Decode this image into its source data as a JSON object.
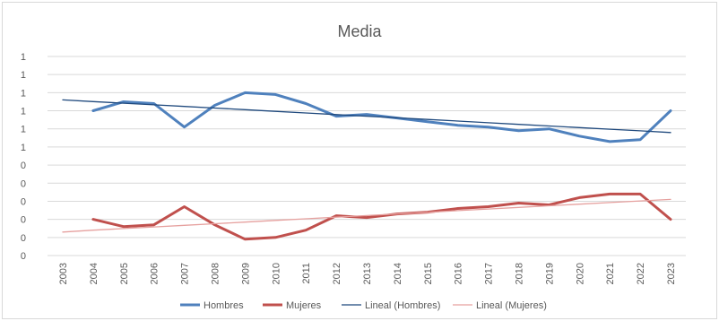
{
  "chart_data": {
    "type": "line",
    "title": "Media",
    "xlabel": "",
    "ylabel": "",
    "x": [
      "2003",
      "2004",
      "2005",
      "2006",
      "2007",
      "2008",
      "2009",
      "2010",
      "2011",
      "2012",
      "2013",
      "2014",
      "2015",
      "2016",
      "2017",
      "2018",
      "2019",
      "2020",
      "2021",
      "2022",
      "2023"
    ],
    "y_tick_labels": [
      "0",
      "0",
      "0",
      "0",
      "0",
      "0",
      "1",
      "1",
      "1",
      "1",
      "1",
      "1"
    ],
    "ylim": [
      0,
      1.1
    ],
    "grid": true,
    "legend_position": "bottom",
    "series": [
      {
        "name": "Hombres",
        "color": "#4f81bd",
        "width": "thick",
        "values": [
          null,
          0.8,
          0.85,
          0.84,
          0.71,
          0.83,
          0.9,
          0.89,
          0.84,
          0.77,
          0.78,
          0.76,
          0.74,
          0.72,
          0.71,
          0.69,
          0.7,
          0.66,
          0.63,
          0.64,
          0.8
        ]
      },
      {
        "name": "Mujeres",
        "color": "#c0504d",
        "width": "thick",
        "values": [
          null,
          0.2,
          0.16,
          0.17,
          0.27,
          0.17,
          0.09,
          0.1,
          0.14,
          0.22,
          0.21,
          0.23,
          0.24,
          0.26,
          0.27,
          0.29,
          0.28,
          0.32,
          0.34,
          0.34,
          0.2
        ]
      },
      {
        "name": "Lineal (Hombres)",
        "color": "#1f497d",
        "width": "thin",
        "values": [
          0.86,
          0.851,
          0.842,
          0.833,
          0.824,
          0.815,
          0.806,
          0.797,
          0.788,
          0.779,
          0.77,
          0.761,
          0.752,
          0.743,
          0.734,
          0.725,
          0.716,
          0.707,
          0.698,
          0.689,
          0.68
        ]
      },
      {
        "name": "Lineal (Mujeres)",
        "color": "#e6a19f",
        "width": "thin",
        "values": [
          0.13,
          0.14,
          0.149,
          0.158,
          0.167,
          0.176,
          0.185,
          0.194,
          0.203,
          0.212,
          0.221,
          0.23,
          0.239,
          0.248,
          0.257,
          0.266,
          0.275,
          0.284,
          0.293,
          0.302,
          0.31
        ]
      }
    ]
  }
}
